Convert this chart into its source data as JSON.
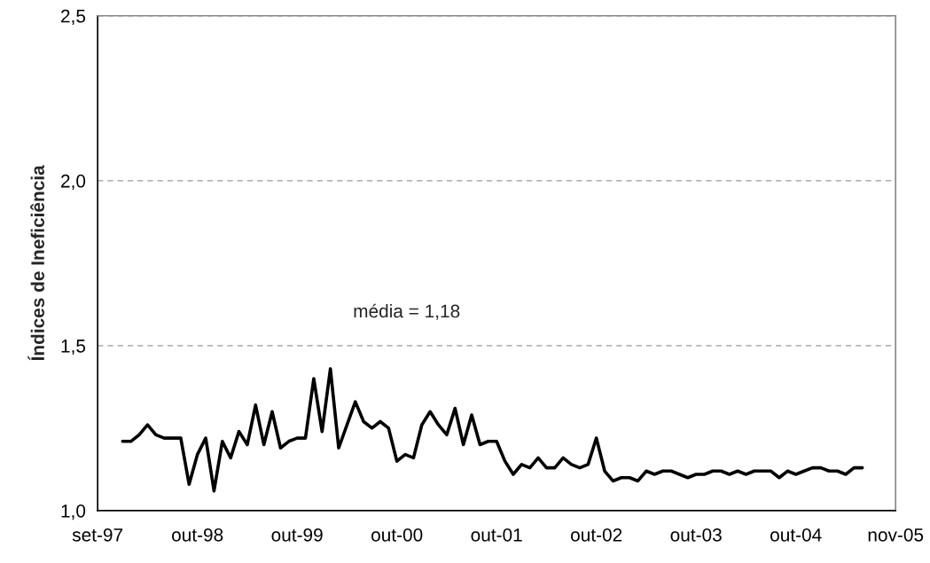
{
  "chart_data": {
    "type": "line",
    "ylabel": "Índices de Ineficiência",
    "annotations": [
      "média = 1,18"
    ],
    "categories": [
      "set-97",
      null,
      null,
      null,
      null,
      null,
      null,
      null,
      null,
      null,
      null,
      null,
      "out-98",
      null,
      null,
      null,
      null,
      null,
      null,
      null,
      null,
      null,
      null,
      null,
      "out-99",
      null,
      null,
      null,
      null,
      null,
      null,
      null,
      null,
      null,
      null,
      null,
      "out-00",
      null,
      null,
      null,
      null,
      null,
      null,
      null,
      null,
      null,
      null,
      null,
      "out-01",
      null,
      null,
      null,
      null,
      null,
      null,
      null,
      null,
      null,
      null,
      null,
      "out-02",
      null,
      null,
      null,
      null,
      null,
      null,
      null,
      null,
      null,
      null,
      null,
      "out-03",
      null,
      null,
      null,
      null,
      null,
      null,
      null,
      null,
      null,
      null,
      null,
      "out-04",
      null,
      null,
      null,
      null,
      null,
      null,
      null,
      null,
      null,
      null,
      null,
      "nov-05"
    ],
    "series": [
      {
        "color": "#000000",
        "values": [
          null,
          null,
          null,
          1.21,
          1.21,
          1.23,
          1.26,
          1.23,
          1.22,
          1.22,
          1.22,
          1.08,
          1.17,
          1.22,
          1.06,
          1.21,
          1.16,
          1.24,
          1.2,
          1.32,
          1.2,
          1.3,
          1.19,
          1.21,
          1.22,
          1.22,
          1.4,
          1.24,
          1.43,
          1.19,
          1.26,
          1.33,
          1.27,
          1.25,
          1.27,
          1.25,
          1.15,
          1.17,
          1.16,
          1.26,
          1.3,
          1.26,
          1.23,
          1.31,
          1.2,
          1.29,
          1.2,
          1.21,
          1.21,
          1.15,
          1.11,
          1.14,
          1.13,
          1.16,
          1.13,
          1.13,
          1.16,
          1.14,
          1.13,
          1.14,
          1.22,
          1.12,
          1.09,
          1.1,
          1.1,
          1.09,
          1.12,
          1.11,
          1.12,
          1.12,
          1.11,
          1.1,
          1.11,
          1.11,
          1.12,
          1.12,
          1.11,
          1.12,
          1.11,
          1.12,
          1.12,
          1.12,
          1.1,
          1.12,
          1.11,
          1.12,
          1.13,
          1.13,
          1.12,
          1.12,
          1.11,
          1.13,
          1.13,
          null,
          null,
          null,
          null
        ]
      }
    ],
    "ylim": [
      1.0,
      2.5
    ],
    "yticks": [
      {
        "value": 1.0,
        "label": "1,0"
      },
      {
        "value": 1.5,
        "label": "1,5"
      },
      {
        "value": 2.0,
        "label": "2,0"
      },
      {
        "value": 2.5,
        "label": "2,5"
      }
    ],
    "grid": "y",
    "marker": "none",
    "line_style": "solid"
  }
}
